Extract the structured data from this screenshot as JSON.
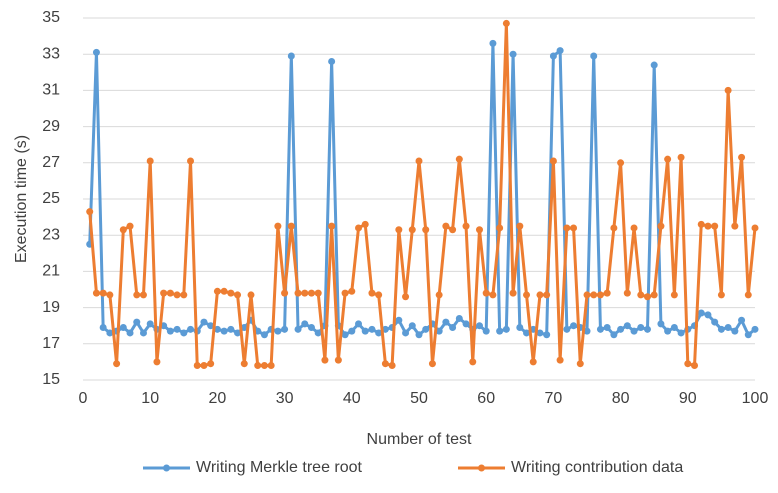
{
  "chart_data": {
    "type": "line",
    "x_label": "Number of test",
    "y_label": "Execution time (s)",
    "x": [
      1,
      2,
      3,
      4,
      5,
      6,
      7,
      8,
      9,
      10,
      11,
      12,
      13,
      14,
      15,
      16,
      17,
      18,
      19,
      20,
      21,
      22,
      23,
      24,
      25,
      26,
      27,
      28,
      29,
      30,
      31,
      32,
      33,
      34,
      35,
      36,
      37,
      38,
      39,
      40,
      41,
      42,
      43,
      44,
      45,
      46,
      47,
      48,
      49,
      50,
      51,
      52,
      53,
      54,
      55,
      56,
      57,
      58,
      59,
      60,
      61,
      62,
      63,
      64,
      65,
      66,
      67,
      68,
      69,
      70,
      71,
      72,
      73,
      74,
      75,
      76,
      77,
      78,
      79,
      80,
      81,
      82,
      83,
      84,
      85,
      86,
      87,
      88,
      89,
      90,
      91,
      92,
      93,
      94,
      95,
      96,
      97,
      98,
      99,
      100
    ],
    "series": [
      {
        "name": "Writing Merkle tree root",
        "color": "#5b9bd5",
        "values": [
          22.5,
          33.1,
          17.9,
          17.6,
          17.7,
          17.9,
          17.6,
          18.2,
          17.6,
          18.1,
          17.8,
          18.0,
          17.7,
          17.8,
          17.6,
          17.8,
          17.7,
          18.2,
          18.0,
          17.8,
          17.7,
          17.8,
          17.6,
          17.9,
          18.3,
          17.7,
          17.5,
          17.8,
          17.7,
          17.8,
          32.9,
          17.8,
          18.1,
          17.9,
          17.6,
          18.0,
          32.6,
          18.0,
          17.5,
          17.7,
          18.1,
          17.7,
          17.8,
          17.6,
          17.8,
          17.9,
          18.3,
          17.6,
          18.0,
          17.5,
          17.8,
          18.1,
          17.7,
          18.2,
          17.9,
          18.4,
          18.1,
          17.8,
          18.0,
          17.7,
          33.6,
          17.7,
          17.8,
          33.0,
          17.9,
          17.6,
          17.8,
          17.6,
          17.5,
          32.9,
          33.2,
          17.8,
          18.0,
          17.9,
          17.7,
          32.9,
          17.8,
          17.9,
          17.5,
          17.8,
          18.0,
          17.7,
          17.9,
          17.8,
          32.4,
          18.1,
          17.7,
          17.9,
          17.6,
          17.8,
          18.0,
          18.7,
          18.6,
          18.2,
          17.8,
          17.9,
          17.7,
          18.3,
          17.5,
          17.8
        ]
      },
      {
        "name": "Writing contribution data",
        "color": "#ed7d31",
        "values": [
          24.3,
          19.8,
          19.8,
          19.7,
          15.9,
          23.3,
          23.5,
          19.7,
          19.7,
          27.1,
          16.0,
          19.8,
          19.8,
          19.7,
          19.7,
          27.1,
          15.8,
          15.8,
          15.9,
          19.9,
          19.9,
          19.8,
          19.7,
          15.9,
          19.7,
          15.8,
          15.8,
          15.8,
          23.5,
          19.8,
          23.5,
          19.8,
          19.8,
          19.8,
          19.8,
          16.1,
          23.5,
          16.1,
          19.8,
          19.9,
          23.4,
          23.6,
          19.8,
          19.7,
          15.9,
          15.8,
          23.3,
          19.6,
          23.3,
          27.1,
          23.3,
          15.9,
          19.7,
          23.5,
          23.3,
          27.2,
          23.5,
          16.0,
          23.3,
          19.8,
          19.7,
          23.4,
          34.7,
          19.8,
          23.5,
          19.7,
          16.0,
          19.7,
          19.7,
          27.1,
          16.1,
          23.4,
          23.4,
          15.9,
          19.7,
          19.7,
          19.7,
          19.8,
          23.4,
          27.0,
          19.8,
          23.4,
          19.7,
          19.6,
          19.7,
          23.5,
          27.2,
          19.7,
          27.3,
          15.9,
          15.8,
          23.6,
          23.5,
          23.5,
          19.7,
          31.0,
          23.5,
          27.3,
          19.7,
          23.4
        ]
      }
    ],
    "xlim": [
      0,
      100
    ],
    "xticks": [
      0,
      10,
      20,
      30,
      40,
      50,
      60,
      70,
      80,
      90,
      100
    ],
    "ylim": [
      15,
      35
    ],
    "yticks": [
      15,
      17,
      19,
      21,
      23,
      25,
      27,
      29,
      31,
      33,
      35
    ],
    "grid": true,
    "legend": "bottom"
  }
}
